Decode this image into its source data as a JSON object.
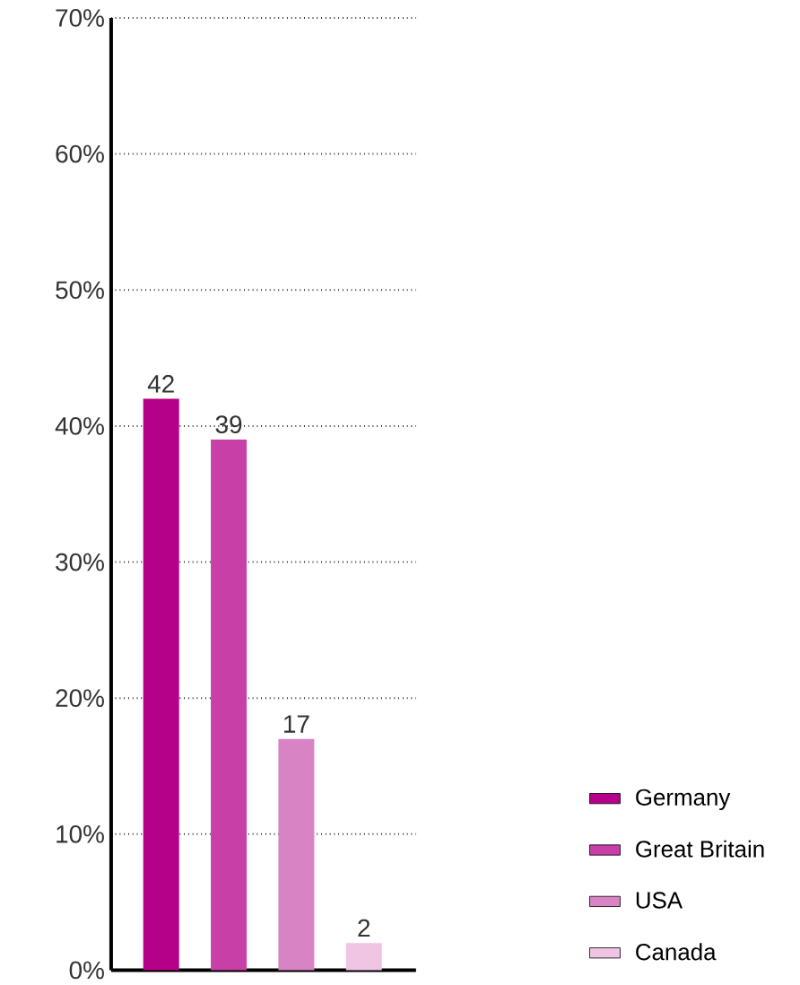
{
  "chart_data": {
    "type": "bar",
    "categories": [
      null,
      null,
      null,
      null
    ],
    "series": [
      {
        "name": "Germany",
        "color": "#b5008a",
        "values": [
          42,
          null,
          null,
          null
        ]
      },
      {
        "name": "Great Britain",
        "color": "#c83fa8",
        "values": [
          null,
          39,
          null,
          null
        ]
      },
      {
        "name": "USA",
        "color": "#d883c4",
        "values": [
          null,
          null,
          17,
          null
        ]
      },
      {
        "name": "Canada",
        "color": "#f0c4e3",
        "values": [
          null,
          null,
          null,
          2
        ]
      }
    ],
    "ylim": [
      0,
      70
    ],
    "yticks": [
      {
        "value": 0,
        "label": "0%"
      },
      {
        "value": 10,
        "label": "10%"
      },
      {
        "value": 20,
        "label": "20%"
      },
      {
        "value": 30,
        "label": "30%"
      },
      {
        "value": 40,
        "label": "40%"
      },
      {
        "value": 50,
        "label": "50%"
      },
      {
        "value": 60,
        "label": "60%"
      },
      {
        "value": 70,
        "label": "70%"
      }
    ],
    "grid": "y",
    "legend": "bottom right",
    "data_labels": true
  }
}
